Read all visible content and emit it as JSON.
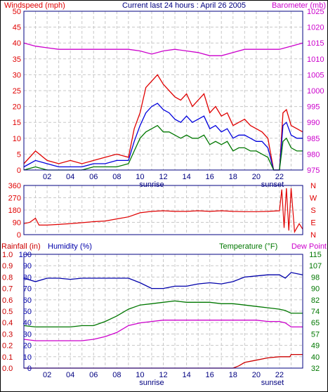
{
  "chart_data": [
    {
      "type": "line",
      "title": "Current last 24 hours : April 26 2005",
      "left_axis_label": "Windspeed (mph)",
      "right_axis_label": "Barometer (mb)",
      "left_ticks": [
        "0",
        "5",
        "10",
        "15",
        "20",
        "25",
        "30",
        "35",
        "40",
        "45",
        "50"
      ],
      "right_ticks": [
        "975",
        "980",
        "985",
        "990",
        "995",
        "1000",
        "1005",
        "1010",
        "1015",
        "1020",
        "1025"
      ],
      "ylim": [
        0,
        50
      ],
      "ylim_right": [
        975,
        1025
      ],
      "x_ticks": [
        "02",
        "04",
        "06",
        "08",
        "10",
        "12",
        "14",
        "16",
        "18",
        "20",
        "22"
      ],
      "x_annotations": [
        {
          "label": "sunrise",
          "x": 11.0
        },
        {
          "label": "sunset",
          "x": 21.4
        }
      ],
      "grid": true,
      "colors": {
        "gust": "#e00000",
        "wind": "#0000dd",
        "min_wind": "#007700",
        "barometer": "#cc00cc",
        "axis": "#000080"
      },
      "series": [
        {
          "key": "gust",
          "axis": "left",
          "x": [
            0,
            1,
            2,
            3,
            4,
            5,
            6,
            7,
            8,
            9,
            9.5,
            10,
            10.5,
            11,
            11.5,
            12,
            12.5,
            13,
            13.5,
            14,
            14.5,
            15,
            15.5,
            16,
            16.5,
            17,
            17.5,
            18,
            18.5,
            19,
            19.5,
            20,
            20.5,
            21,
            21.5,
            22,
            22.3,
            22.6,
            23,
            23.5,
            24
          ],
          "values": [
            2,
            6,
            3,
            2,
            3,
            2,
            3,
            4,
            5,
            4,
            13,
            18,
            26,
            28,
            30,
            27,
            25,
            23,
            22,
            24,
            20,
            22,
            24,
            18,
            20,
            17,
            18,
            14,
            15,
            16,
            14,
            13,
            12,
            10,
            0,
            0,
            18,
            19,
            14,
            13,
            12
          ]
        },
        {
          "key": "wind",
          "axis": "left",
          "x": [
            0,
            1,
            2,
            3,
            4,
            5,
            6,
            7,
            8,
            9,
            9.5,
            10,
            10.5,
            11,
            11.5,
            12,
            12.5,
            13,
            13.5,
            14,
            14.5,
            15,
            15.5,
            16,
            16.5,
            17,
            17.5,
            18,
            18.5,
            19,
            19.5,
            20,
            20.5,
            21,
            21.5,
            22,
            22.3,
            22.6,
            23,
            23.5,
            24
          ],
          "values": [
            1,
            3,
            2,
            1,
            1,
            1,
            2,
            2,
            3,
            3,
            9,
            14,
            18,
            20,
            21,
            19,
            18,
            16,
            15,
            17,
            15,
            16,
            17,
            13,
            14,
            12,
            13,
            10,
            11,
            11,
            10,
            9,
            9,
            7,
            0,
            0,
            14,
            15,
            11,
            10,
            10
          ]
        },
        {
          "key": "min_wind",
          "axis": "left",
          "x": [
            0,
            1,
            2,
            3,
            4,
            5,
            6,
            7,
            8,
            9,
            9.5,
            10,
            10.5,
            11,
            11.5,
            12,
            12.5,
            13,
            13.5,
            14,
            14.5,
            15,
            15.5,
            16,
            16.5,
            17,
            17.5,
            18,
            18.5,
            19,
            19.5,
            20,
            20.5,
            21,
            21.5,
            22,
            22.3,
            22.6,
            23,
            23.5,
            24
          ],
          "values": [
            0,
            1,
            0,
            0,
            0,
            0,
            1,
            1,
            1,
            2,
            6,
            10,
            12,
            13,
            14,
            12,
            12,
            11,
            10,
            11,
            10,
            10,
            11,
            8,
            9,
            8,
            9,
            6,
            7,
            7,
            6,
            6,
            5,
            4,
            0,
            0,
            9,
            10,
            7,
            6,
            6
          ]
        },
        {
          "key": "barometer",
          "axis": "right",
          "x": [
            0,
            1,
            2,
            3,
            4,
            5,
            6,
            7,
            8,
            9,
            10,
            11,
            12,
            13,
            14,
            15,
            16,
            17,
            18,
            19,
            20,
            21,
            22,
            23,
            24
          ],
          "values": [
            1015,
            1014,
            1013.5,
            1013,
            1013,
            1013,
            1013,
            1013,
            1013,
            1013,
            1012.5,
            1011.5,
            1012.5,
            1013,
            1012.5,
            1012,
            1011,
            1011,
            1012,
            1013,
            1013,
            1013,
            1013,
            1014,
            1015
          ]
        }
      ]
    },
    {
      "type": "line",
      "left_ticks": [
        "0",
        "90",
        "180",
        "270",
        "360"
      ],
      "right_ticks": [
        "N",
        "W",
        "S",
        "E",
        "N"
      ],
      "ylim": [
        0,
        360
      ],
      "colors": {
        "direction": "#e00000"
      },
      "series": [
        {
          "key": "direction",
          "x": [
            0,
            0.5,
            1,
            1.3,
            2,
            4,
            6,
            7,
            8,
            9,
            10,
            11,
            12,
            13,
            14,
            15,
            16,
            17,
            18,
            19,
            20,
            21,
            22,
            22.2,
            22.4,
            22.6,
            22.8,
            23,
            23.3,
            23.7,
            24
          ],
          "values": [
            80,
            90,
            120,
            70,
            70,
            80,
            95,
            100,
            115,
            130,
            160,
            170,
            175,
            170,
            170,
            175,
            170,
            175,
            170,
            168,
            168,
            170,
            175,
            330,
            50,
            340,
            30,
            340,
            20,
            80,
            40
          ]
        }
      ]
    },
    {
      "type": "line",
      "left_axis_label": "Rainfall (in)",
      "center_axis_label": "Humidity (%)",
      "right_axis_label": "Temperature (°F)",
      "right_axis_label_2": "Dew Point",
      "rain_ticks": [
        "0.0",
        "0.1",
        "0.2",
        "0.3",
        "0.4",
        "0.5",
        "0.6",
        "0.7",
        "0.8",
        "0.9",
        "1.0"
      ],
      "humidity_ticks": [
        "0",
        "10",
        "20",
        "30",
        "40",
        "50",
        "60",
        "70",
        "80",
        "90",
        "100"
      ],
      "temp_ticks": [
        "32",
        "40",
        "49",
        "57",
        "65",
        "74",
        "82",
        "90",
        "98",
        "107",
        "115"
      ],
      "ylim_rain": [
        0,
        1
      ],
      "ylim_humidity": [
        0,
        100
      ],
      "ylim_temp": [
        32,
        115
      ],
      "colors": {
        "rainfall": "#cc0000",
        "humidity": "#0000aa",
        "temperature": "#007700",
        "dew_point": "#cc00cc"
      },
      "series": [
        {
          "key": "humidity",
          "axis": "humidity",
          "x": [
            0,
            1,
            2,
            3,
            4,
            5,
            6,
            7,
            8,
            9,
            10,
            11,
            12,
            13,
            14,
            15,
            16,
            17,
            18,
            19,
            20,
            21,
            22,
            22.5,
            23,
            24
          ],
          "values": [
            79,
            76,
            79,
            79,
            78,
            79,
            79,
            79,
            79,
            79,
            75,
            70,
            70,
            72,
            72,
            74,
            75,
            74,
            76,
            80,
            81,
            82,
            82,
            79,
            84,
            82
          ]
        },
        {
          "key": "temperature",
          "axis": "temp",
          "x": [
            0,
            1,
            2,
            3,
            4,
            5,
            6,
            7,
            8,
            9,
            10,
            11,
            12,
            13,
            14,
            15,
            16,
            17,
            18,
            19,
            20,
            21,
            22,
            22.5,
            23,
            24
          ],
          "values": [
            63,
            62,
            62,
            62,
            62,
            63,
            63,
            66,
            70,
            75,
            78,
            79,
            80,
            81,
            80,
            80,
            80,
            79,
            79,
            78,
            77,
            76,
            75,
            74,
            72,
            72
          ]
        },
        {
          "key": "dew_point",
          "axis": "temp",
          "x": [
            0,
            1,
            2,
            3,
            4,
            5,
            6,
            7,
            8,
            9,
            10,
            11,
            12,
            13,
            14,
            15,
            16,
            17,
            18,
            19,
            20,
            21,
            22,
            22.5,
            23,
            24
          ],
          "values": [
            53,
            52,
            52,
            52,
            52,
            52,
            53,
            55,
            58,
            63,
            65,
            66,
            67,
            67,
            67,
            67,
            67,
            67,
            67,
            67,
            67,
            66,
            66,
            65,
            62,
            62
          ]
        },
        {
          "key": "rainfall",
          "axis": "rain",
          "x": [
            0,
            18,
            18.5,
            19,
            20,
            21,
            22,
            22.5,
            22.9,
            23,
            24
          ],
          "values": [
            0,
            0,
            0.02,
            0.05,
            0.07,
            0.09,
            0.1,
            0.1,
            0.1,
            0.12,
            0.12
          ]
        }
      ]
    }
  ]
}
